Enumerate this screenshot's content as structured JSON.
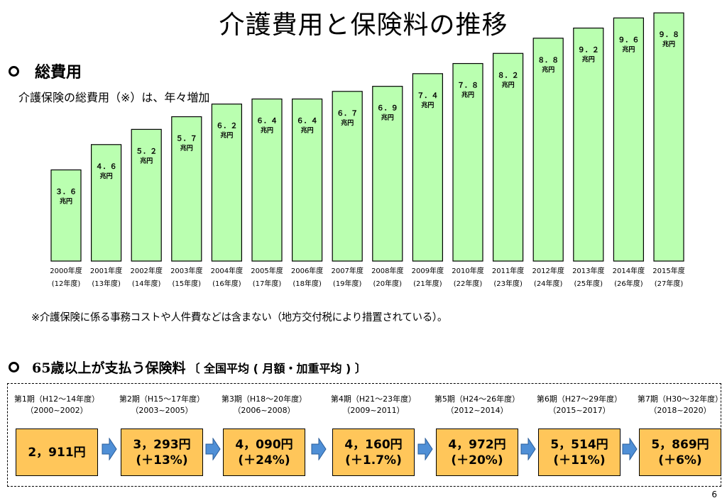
{
  "title": "介護費用と保険料の推移",
  "section1": {
    "heading": "総費用",
    "description": "介護保険の総費用（※）は、年々増加",
    "note": "※介護保険に係る事務コストや人件費などは含まない（地方交付税により措置されている）。"
  },
  "chart_data": {
    "type": "bar",
    "title": "",
    "unit": "兆円",
    "categories": [
      "2000年度",
      "2001年度",
      "2002年度",
      "2003年度",
      "2004年度",
      "2005年度",
      "2006年度",
      "2007年度",
      "2008年度",
      "2009年度",
      "2010年度",
      "2011年度",
      "2012年度",
      "2013年度",
      "2014年度",
      "2015年度"
    ],
    "sublabels": [
      "(12年度)",
      "(13年度)",
      "(14年度)",
      "(15年度)",
      "(16年度)",
      "(17年度)",
      "(18年度)",
      "(19年度)",
      "(20年度)",
      "(21年度)",
      "(22年度)",
      "(23年度)",
      "(24年度)",
      "(25年度)",
      "(26年度)",
      "(27年度)"
    ],
    "values": [
      3.6,
      4.6,
      5.2,
      5.7,
      6.2,
      6.4,
      6.4,
      6.7,
      6.9,
      7.4,
      7.8,
      8.2,
      8.8,
      9.2,
      9.6,
      9.8
    ],
    "value_labels": [
      "３．６",
      "４．６",
      "５．２",
      "５．７",
      "６．２",
      "６．４",
      "６．４",
      "６．７",
      "６．９",
      "７．４",
      "７．８",
      "８．２",
      "８．８",
      "９．２",
      "９．６",
      "９．８"
    ],
    "bar_color": "#baffb0"
  },
  "section2": {
    "heading_main": "65歳以上が支払う保険料",
    "heading_sub": "〔 全国平均 ( 月額・加重平均 ) 〕",
    "box_color": "#ffc65a",
    "arrow_color": "#4f8fd6",
    "periods": [
      {
        "label": "第1期（H12～14年度）",
        "years": "（2000~2002）",
        "amount": "2，911円",
        "change": ""
      },
      {
        "label": "第2期（H15～17年度）",
        "years": "（2003~2005）",
        "amount": "3，293円",
        "change": "(＋13%)"
      },
      {
        "label": "第3期（H18～20年度）",
        "years": "（2006~2008）",
        "amount": "4，090円",
        "change": "(＋24%)"
      },
      {
        "label": "第4期（H21～23年度）",
        "years": "（2009~2011）",
        "amount": "4，160円",
        "change": "(＋1.7%)"
      },
      {
        "label": "第5期（H24～26年度）",
        "years": "（2012~2014）",
        "amount": "4，972円",
        "change": "(＋20%)"
      },
      {
        "label": "第6期（H27～29年度）",
        "years": "（2015~2017）",
        "amount": "5，514円",
        "change": "(＋11%)"
      },
      {
        "label": "第7期（H30～32年度）",
        "years": "（2018~2020）",
        "amount": "5，869円",
        "change": "(＋6%)"
      }
    ]
  },
  "page_number": "6"
}
